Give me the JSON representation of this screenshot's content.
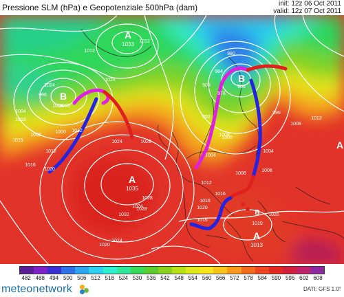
{
  "header": {
    "title": "Pressione SLM (hPa) e Geopotenziale 500hPa (dam)",
    "init": "init: 12z 06 Oct 2011",
    "valid": "valid: 12z 07 Oct 2011"
  },
  "map": {
    "pressure_centers": [
      {
        "type": "A",
        "value": "1033"
      },
      {
        "type": "B",
        "value": "986"
      },
      {
        "type": "B",
        "value": ""
      },
      {
        "type": "A",
        "value": "1035"
      },
      {
        "type": "A",
        "value": "1013"
      },
      {
        "type": "A",
        "value": ""
      },
      {
        "type": "B",
        "value": "1019"
      }
    ],
    "isobar_labels": [
      "1016",
      "1024",
      "1016",
      "1024",
      "1004",
      "996",
      "1004",
      "1008",
      "1012",
      "1000",
      "1012",
      "1016",
      "1020",
      "1024",
      "1016",
      "1028",
      "1024",
      "1028",
      "1032",
      "1024",
      "1028",
      "1020",
      "1016",
      "1012",
      "1008",
      "980",
      "988",
      "984",
      "976",
      "992",
      "996",
      "1000",
      "1004",
      "1008",
      "1008",
      "1004",
      "1012",
      "1016",
      "1020",
      "1016",
      "1020",
      "1008",
      "1012",
      "1012"
    ]
  },
  "scale": {
    "labels": [
      "482",
      "488",
      "494",
      "500",
      "506",
      "512",
      "518",
      "524",
      "530",
      "536",
      "542",
      "548",
      "554",
      "560",
      "566",
      "572",
      "578",
      "584",
      "590",
      "596",
      "602",
      "608"
    ],
    "colors": [
      "#5a1e96",
      "#7f23c8",
      "#3a2fd2",
      "#2d6fe6",
      "#2ea6f2",
      "#2dd2f0",
      "#2ef0d0",
      "#30e89a",
      "#3ada5a",
      "#5ccd2e",
      "#8ad21e",
      "#b6e01a",
      "#dfe81a",
      "#f7e41a",
      "#fbc41a",
      "#f99a1c",
      "#f36c1e",
      "#ed4620",
      "#e32822",
      "#d11f3c",
      "#c0236a",
      "#8e2aa0"
    ]
  },
  "footer": {
    "logo": "meteonetwork",
    "logo_dot_colors": [
      "#f2b01e",
      "#6dbb3a",
      "#2a85c8"
    ],
    "dati": "DATI: GFS 1.0°"
  }
}
